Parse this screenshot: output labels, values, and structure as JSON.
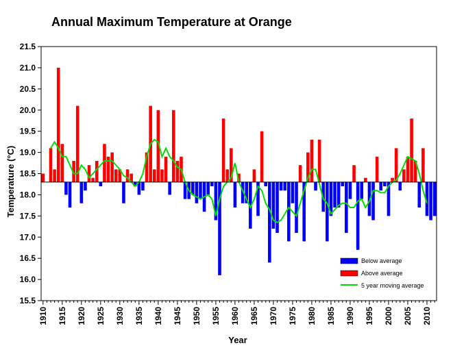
{
  "chart_data": {
    "type": "bar",
    "title": "Annual Maximum Temperature at Orange",
    "xlabel": "Year",
    "ylabel": "Temperature (°C)",
    "baseline": 18.3,
    "ylim": [
      15.5,
      21.5
    ],
    "yticks": [
      15.5,
      16.0,
      16.5,
      17.0,
      17.5,
      18.0,
      18.5,
      19.0,
      19.5,
      20.0,
      20.5,
      21.0,
      21.5
    ],
    "ytick_labels": [
      "15.5",
      "16.0",
      "16.5",
      "17.0",
      "17.5",
      "18.0",
      "18.5",
      "19.0",
      "19.5",
      "20.0",
      "20.5",
      "21.0",
      "21.5"
    ],
    "xlim": [
      1909.5,
      2012.5
    ],
    "xticks": [
      1910,
      1915,
      1920,
      1925,
      1930,
      1935,
      1940,
      1945,
      1950,
      1955,
      1960,
      1965,
      1970,
      1975,
      1980,
      1985,
      1990,
      1995,
      2000,
      2005,
      2010
    ],
    "xtick_labels": [
      "1910",
      "1915",
      "1920",
      "1925",
      "1930",
      "1935",
      "1940",
      "1945",
      "1950",
      "1955",
      "1960",
      "1965",
      "1970",
      "1975",
      "1980",
      "1985",
      "1990",
      "1995",
      "2000",
      "2005",
      "2010"
    ],
    "grid": false,
    "legend_position": "bottom-right",
    "colors": {
      "below": "#0000ff",
      "above": "#ff0000",
      "moving": "#00dd00"
    },
    "series": [
      {
        "name": "Below average",
        "kind": "bar-below"
      },
      {
        "name": "Above average",
        "kind": "bar-above"
      },
      {
        "name": "5 year moving average",
        "kind": "line"
      }
    ],
    "years": [
      1910,
      1911,
      1912,
      1913,
      1914,
      1915,
      1916,
      1917,
      1918,
      1919,
      1920,
      1921,
      1922,
      1923,
      1924,
      1925,
      1926,
      1927,
      1928,
      1929,
      1930,
      1931,
      1932,
      1933,
      1934,
      1935,
      1936,
      1937,
      1938,
      1939,
      1940,
      1941,
      1942,
      1943,
      1944,
      1945,
      1946,
      1947,
      1948,
      1949,
      1950,
      1951,
      1952,
      1953,
      1954,
      1955,
      1956,
      1957,
      1958,
      1959,
      1960,
      1961,
      1962,
      1963,
      1964,
      1965,
      1966,
      1967,
      1968,
      1969,
      1970,
      1971,
      1972,
      1973,
      1974,
      1975,
      1976,
      1977,
      1978,
      1979,
      1980,
      1981,
      1982,
      1983,
      1984,
      1985,
      1986,
      1987,
      1988,
      1989,
      1990,
      1991,
      1992,
      1993,
      1994,
      1995,
      1996,
      1997,
      1998,
      1999,
      2000,
      2001,
      2002,
      2003,
      2004,
      2005,
      2006,
      2007,
      2008,
      2009,
      2010,
      2011,
      2012
    ],
    "values": [
      18.5,
      18.3,
      19.1,
      18.6,
      21.0,
      19.2,
      18.0,
      17.7,
      18.8,
      20.1,
      17.8,
      18.1,
      18.7,
      18.4,
      18.8,
      18.2,
      19.2,
      18.9,
      19.0,
      18.6,
      18.6,
      17.8,
      18.6,
      18.5,
      18.2,
      18.0,
      18.1,
      19.0,
      20.1,
      18.6,
      20.0,
      18.6,
      18.9,
      18.0,
      20.0,
      18.8,
      18.9,
      17.9,
      17.9,
      18.0,
      17.8,
      17.9,
      17.6,
      18.0,
      18.2,
      17.4,
      16.1,
      19.8,
      18.6,
      19.1,
      17.7,
      18.5,
      17.8,
      17.8,
      17.2,
      18.6,
      17.5,
      19.5,
      18.2,
      16.4,
      17.2,
      17.1,
      18.1,
      18.1,
      16.9,
      17.8,
      17.1,
      18.7,
      16.9,
      19.0,
      19.3,
      18.1,
      19.3,
      17.6,
      16.9,
      17.5,
      17.7,
      17.7,
      18.2,
      17.1,
      17.9,
      18.7,
      16.7,
      17.9,
      18.4,
      17.5,
      17.4,
      18.9,
      18.1,
      18.2,
      17.5,
      18.4,
      19.1,
      18.1,
      18.6,
      18.9,
      19.8,
      18.8,
      17.7,
      19.1,
      17.5,
      17.4,
      17.5
    ],
    "moving_average": {
      "years": [
        1912,
        1913,
        1914,
        1915,
        1916,
        1917,
        1918,
        1919,
        1920,
        1921,
        1922,
        1923,
        1924,
        1925,
        1926,
        1927,
        1928,
        1929,
        1930,
        1931,
        1932,
        1933,
        1934,
        1935,
        1936,
        1937,
        1938,
        1939,
        1940,
        1941,
        1942,
        1943,
        1944,
        1945,
        1946,
        1947,
        1948,
        1949,
        1950,
        1951,
        1952,
        1953,
        1954,
        1955,
        1956,
        1957,
        1958,
        1959,
        1960,
        1961,
        1962,
        1963,
        1964,
        1965,
        1966,
        1967,
        1968,
        1969,
        1970,
        1971,
        1972,
        1973,
        1974,
        1975,
        1976,
        1977,
        1978,
        1979,
        1980,
        1981,
        1982,
        1983,
        1984,
        1985,
        1986,
        1987,
        1988,
        1989,
        1990,
        1991,
        1992,
        1993,
        1994,
        1995,
        1996,
        1997,
        1998,
        1999,
        2000,
        2001,
        2002,
        2003,
        2004,
        2005,
        2006,
        2007,
        2008,
        2009,
        2010
      ],
      "values": [
        19.1,
        19.25,
        19.1,
        18.9,
        18.9,
        18.7,
        18.5,
        18.5,
        18.7,
        18.6,
        18.4,
        18.5,
        18.6,
        18.7,
        18.8,
        18.8,
        18.8,
        18.7,
        18.6,
        18.45,
        18.4,
        18.3,
        18.2,
        18.3,
        18.5,
        18.9,
        19.2,
        19.3,
        19.25,
        18.9,
        19.1,
        18.9,
        18.8,
        18.65,
        18.6,
        18.3,
        18.1,
        18.0,
        17.95,
        17.9,
        17.95,
        18.0,
        17.9,
        17.5,
        17.9,
        18.2,
        18.3,
        18.4,
        18.75,
        18.3,
        18.1,
        17.9,
        17.7,
        17.9,
        18.2,
        18.1,
        17.8,
        17.65,
        17.4,
        17.35,
        17.4,
        17.55,
        17.7,
        17.6,
        17.5,
        17.8,
        18.1,
        18.4,
        18.6,
        18.6,
        18.25,
        17.9,
        17.8,
        17.55,
        17.65,
        17.75,
        17.8,
        17.8,
        17.7,
        17.7,
        17.85,
        17.9,
        17.7,
        17.85,
        18.1,
        18.1,
        18.05,
        18.05,
        18.2,
        18.3,
        18.35,
        18.5,
        18.7,
        18.9,
        18.85,
        18.8,
        18.5,
        18.1,
        17.8
      ]
    }
  }
}
